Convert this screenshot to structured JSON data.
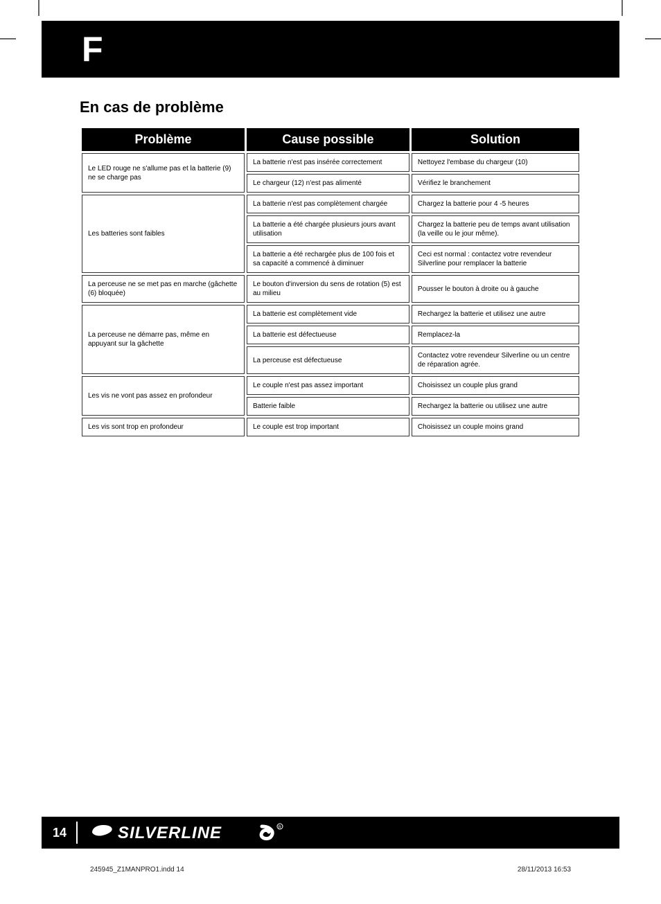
{
  "header": {
    "language_letter": "F"
  },
  "section": {
    "title": "En cas de problème"
  },
  "table": {
    "headers": {
      "problem": "Problème",
      "cause": "Cause possible",
      "solution": "Solution"
    },
    "groups": [
      {
        "problem": "Le LED rouge ne s'allume pas et la batterie (9) ne se charge pas",
        "rows": [
          {
            "cause": "La batterie n'est pas insérée correctement",
            "solution": "Nettoyez l'embase du chargeur (10)"
          },
          {
            "cause": "Le chargeur (12) n'est pas alimenté",
            "solution": "Vérifiez le branchement"
          }
        ]
      },
      {
        "problem": "Les batteries sont faibles",
        "rows": [
          {
            "cause": "La batterie n'est pas complètement chargée",
            "solution": "Chargez la batterie pour 4 -5 heures"
          },
          {
            "cause": "La batterie a été chargée plusieurs jours avant utilisation",
            "solution": "Chargez la batterie peu de temps avant utilisation (la veille ou le jour même)."
          },
          {
            "cause": "La batterie a été rechargée plus de 100 fois et sa capacité a commencé à diminuer",
            "solution": "Ceci est normal : contactez votre revendeur Silverline pour remplacer la batterie"
          }
        ]
      },
      {
        "problem": "La perceuse ne se met pas en marche (gâchette (6) bloquée)",
        "rows": [
          {
            "cause": "Le bouton d'inversion du sens de rotation (5) est au milieu",
            "solution": "Pousser le bouton à droite ou à gauche"
          }
        ]
      },
      {
        "problem": "La perceuse ne démarre pas, même en appuyant sur la gâchette",
        "rows": [
          {
            "cause": "La batterie est complètement vide",
            "solution": "Rechargez la batterie et utilisez une autre"
          },
          {
            "cause": "La batterie est défectueuse",
            "solution": "Remplacez-la"
          },
          {
            "cause": "La perceuse est défectueuse",
            "solution": "Contactez votre revendeur Silverline ou un centre de réparation agrée."
          }
        ]
      },
      {
        "problem": "Les vis ne vont pas assez en profondeur",
        "rows": [
          {
            "cause": "Le couple n'est pas assez important",
            "solution": "Choisissez un couple plus grand"
          },
          {
            "cause": "Batterie faible",
            "solution": "Rechargez la batterie ou utilisez une autre"
          }
        ]
      },
      {
        "problem": "Les vis sont trop en profondeur",
        "rows": [
          {
            "cause": "Le couple est trop important",
            "solution": "Choisissez un couple moins grand"
          }
        ]
      }
    ]
  },
  "footer": {
    "page_number": "14",
    "brand": "SILVERLINE",
    "brand_registered": "®"
  },
  "prepress": {
    "filename": "245945_Z1MANPRO1.indd   14",
    "timestamp": "28/11/2013   16:53"
  },
  "colors": {
    "band": "#000000",
    "text_on_band": "#ffffff",
    "cell_border": "#333333",
    "page_bg": "#ffffff"
  }
}
